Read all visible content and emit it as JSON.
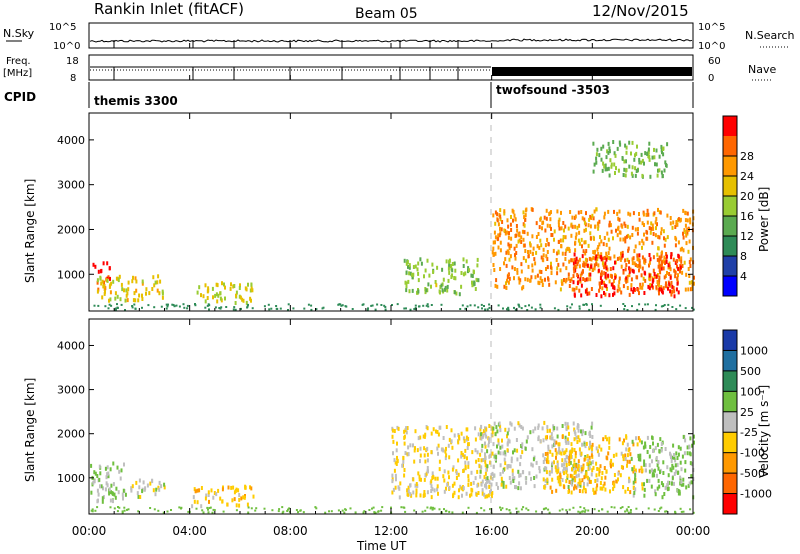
{
  "header": {
    "station_title": "Rankin Inlet (fitACF)",
    "beam": "Beam 05",
    "date": "12/Nov/2015"
  },
  "noise_panel": {
    "left_label": "N.Sky",
    "left_ticks": [
      "10^5",
      "10^0"
    ],
    "right_label": "N.Search",
    "right_ticks": [
      "10^5",
      "10^0"
    ]
  },
  "freq_panel": {
    "left_label": "Freq.",
    "left_unit": "[MHz]",
    "left_ticks": [
      "18",
      "8"
    ],
    "right_label": "Nave",
    "right_ticks": [
      "60",
      "0"
    ]
  },
  "cpid_panel": {
    "label": "CPID",
    "modes": [
      "themis 3300",
      "twofsound -3503"
    ]
  },
  "time_axis": {
    "tick_labels": [
      "00:00",
      "04:00",
      "08:00",
      "12:00",
      "16:00",
      "20:00",
      "00:00"
    ],
    "label": "Time UT"
  },
  "power_panel": {
    "ylabel": "Slant Range [km]",
    "yticks": [
      "1000",
      "2000",
      "3000",
      "4000"
    ],
    "colorbar_label": "Power [dB]",
    "colorbar_ticks": [
      "4",
      "8",
      "12",
      "16",
      "20",
      "24",
      "28"
    ],
    "colors": [
      "#0000ff",
      "#2040a8",
      "#2e8b57",
      "#5aaa50",
      "#99cc33",
      "#e6c000",
      "#ff9900",
      "#ff6600",
      "#ff0000"
    ]
  },
  "velocity_panel": {
    "ylabel": "Slant Range [km]",
    "yticks": [
      "1000",
      "2000",
      "3000",
      "4000"
    ],
    "colorbar_label": "Velocity [m s⁻¹]",
    "colorbar_ticks": [
      "1000",
      "500",
      "100",
      "25",
      "-25",
      "-100",
      "-500",
      "-1000"
    ],
    "colors": [
      "#1a3aa8",
      "#1f6fa0",
      "#2e8b57",
      "#6fbf3f",
      "#bfbfbf",
      "#ffcc00",
      "#ff9900",
      "#ff6600",
      "#ff0000"
    ]
  },
  "chart_data": [
    {
      "type": "heatmap",
      "title": "Power",
      "xlabel": "Time UT",
      "ylabel": "Slant Range [km]",
      "x_range_hours": [
        0,
        24
      ],
      "ylim": [
        180,
        4600
      ],
      "colorbar": "Power [dB]",
      "value_range": [
        0,
        30
      ],
      "regions": [
        {
          "t": [
            0.1,
            0.8
          ],
          "r": [
            700,
            1300
          ],
          "value": 27
        },
        {
          "t": [
            0.3,
            3.0
          ],
          "r": [
            450,
            1000
          ],
          "value": 18
        },
        {
          "t": [
            4.0,
            6.5
          ],
          "r": [
            400,
            850
          ],
          "value": 17
        },
        {
          "t": [
            12.5,
            15.5
          ],
          "r": [
            600,
            1400
          ],
          "value": 14
        },
        {
          "t": [
            16.0,
            24.0
          ],
          "r": [
            700,
            2500
          ],
          "value": 22
        },
        {
          "t": [
            19.0,
            23.5
          ],
          "r": [
            550,
            1500
          ],
          "value": 27
        },
        {
          "t": [
            20.0,
            23.0
          ],
          "r": [
            3200,
            4000
          ],
          "value": 13
        }
      ]
    },
    {
      "type": "heatmap",
      "title": "Velocity",
      "xlabel": "Time UT",
      "ylabel": "Slant Range [km]",
      "x_range_hours": [
        0,
        24
      ],
      "ylim": [
        180,
        4600
      ],
      "colorbar": "Velocity [m s⁻¹]",
      "value_range": [
        -1000,
        1000
      ],
      "regions": [
        {
          "t": [
            0.0,
            1.5
          ],
          "r": [
            500,
            1400
          ],
          "value": 120
        },
        {
          "t": [
            1.5,
            3.0
          ],
          "r": [
            600,
            1000
          ],
          "value": 0
        },
        {
          "t": [
            4.0,
            6.5
          ],
          "r": [
            400,
            850
          ],
          "value": -200
        },
        {
          "t": [
            12.0,
            16.0
          ],
          "r": [
            600,
            2200
          ],
          "value": -150
        },
        {
          "t": [
            15.5,
            20.0
          ],
          "r": [
            800,
            2300
          ],
          "value": 0
        },
        {
          "t": [
            18.0,
            22.0
          ],
          "r": [
            700,
            2000
          ],
          "value": -250
        },
        {
          "t": [
            21.5,
            24.0
          ],
          "r": [
            600,
            2000
          ],
          "value": 150
        }
      ]
    }
  ]
}
